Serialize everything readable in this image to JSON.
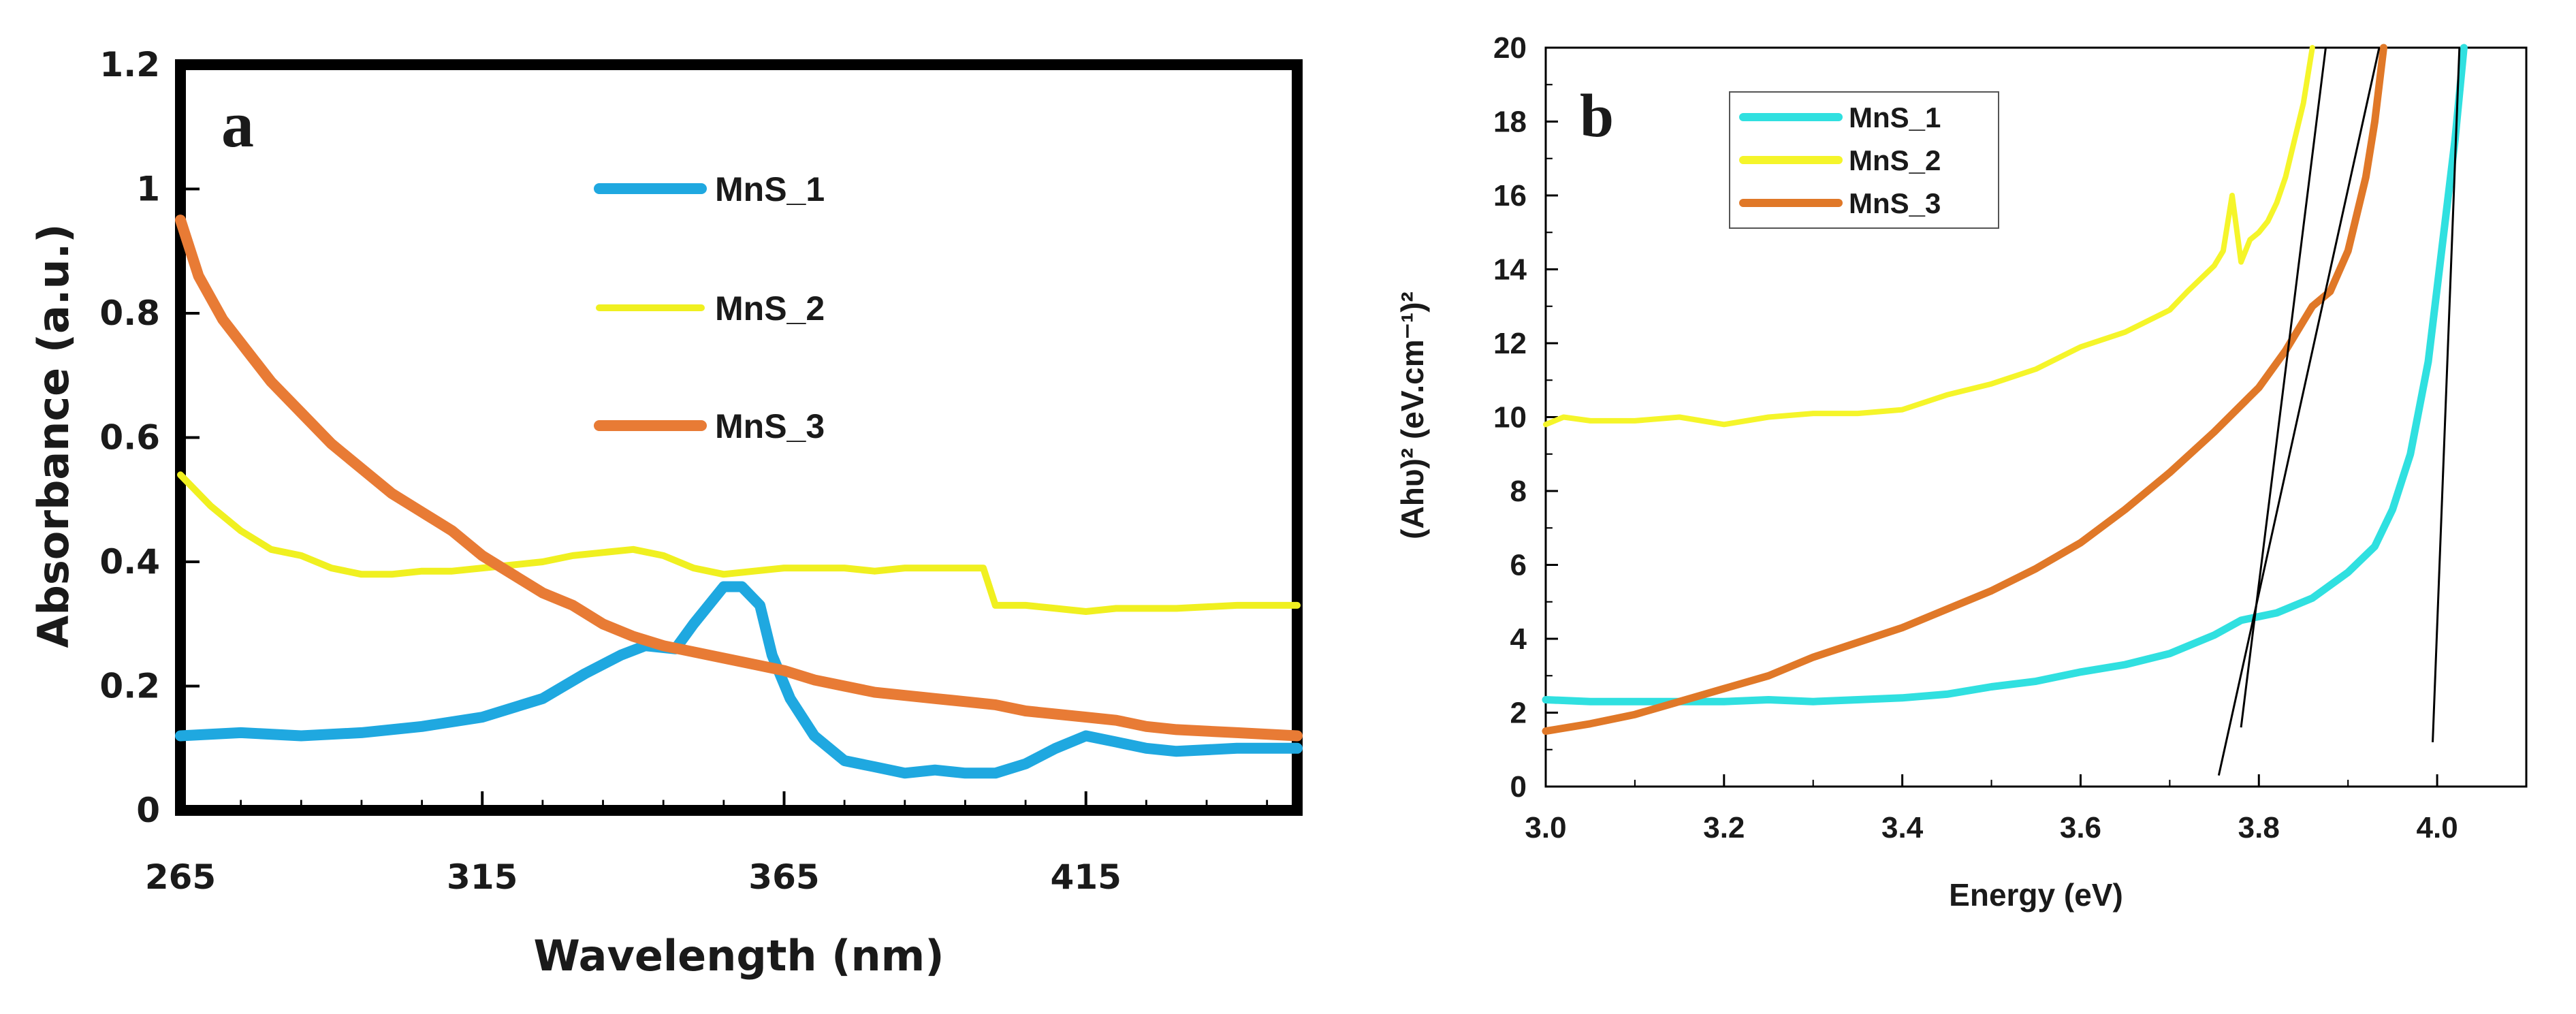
{
  "chart_data": [
    {
      "type": "line",
      "panel_label": "a",
      "title": "",
      "xlabel": "Wavelength (nm)",
      "ylabel": "Absorbance (a.u.)",
      "xlim": [
        265,
        450
      ],
      "ylim": [
        0,
        1.2
      ],
      "x_ticks": [
        265,
        315,
        365,
        415
      ],
      "x_tick_labels": [
        "265",
        "315",
        "365",
        "415"
      ],
      "y_ticks": [
        0,
        0.2,
        0.4,
        0.6,
        0.8,
        1,
        1.2
      ],
      "y_tick_labels": [
        "0",
        "0.2",
        "0.4",
        "0.6",
        "0.8",
        "1",
        "1.2"
      ],
      "legend_position": "top-center",
      "series": [
        {
          "name": "MnS_1",
          "color": "#1fa8e0",
          "x": [
            265,
            275,
            285,
            295,
            305,
            315,
            325,
            332,
            338,
            342,
            347,
            350,
            355,
            358,
            361,
            363,
            366,
            370,
            375,
            380,
            385,
            390,
            395,
            400,
            405,
            410,
            415,
            420,
            425,
            430,
            440,
            450
          ],
          "y": [
            0.12,
            0.125,
            0.12,
            0.125,
            0.135,
            0.15,
            0.18,
            0.22,
            0.25,
            0.265,
            0.26,
            0.3,
            0.36,
            0.36,
            0.33,
            0.25,
            0.18,
            0.12,
            0.08,
            0.07,
            0.06,
            0.065,
            0.06,
            0.06,
            0.075,
            0.1,
            0.12,
            0.11,
            0.1,
            0.095,
            0.1,
            0.1
          ]
        },
        {
          "name": "MnS_2",
          "color": "#f0f020",
          "x": [
            265,
            270,
            275,
            280,
            285,
            290,
            295,
            300,
            305,
            310,
            315,
            320,
            325,
            330,
            335,
            340,
            345,
            350,
            355,
            360,
            365,
            370,
            375,
            380,
            385,
            390,
            395,
            398,
            400,
            405,
            410,
            415,
            420,
            430,
            440,
            450
          ],
          "y": [
            0.54,
            0.49,
            0.45,
            0.42,
            0.41,
            0.39,
            0.38,
            0.38,
            0.385,
            0.385,
            0.39,
            0.395,
            0.4,
            0.41,
            0.415,
            0.42,
            0.41,
            0.39,
            0.38,
            0.385,
            0.39,
            0.39,
            0.39,
            0.385,
            0.39,
            0.39,
            0.39,
            0.39,
            0.33,
            0.33,
            0.325,
            0.32,
            0.325,
            0.325,
            0.33,
            0.33
          ]
        },
        {
          "name": "MnS_3",
          "color": "#e87b35",
          "x": [
            265,
            268,
            272,
            276,
            280,
            285,
            290,
            295,
            300,
            305,
            310,
            315,
            320,
            325,
            330,
            335,
            340,
            345,
            350,
            355,
            360,
            365,
            370,
            375,
            380,
            385,
            390,
            395,
            400,
            405,
            410,
            415,
            420,
            425,
            430,
            440,
            450
          ],
          "y": [
            0.95,
            0.86,
            0.79,
            0.74,
            0.69,
            0.64,
            0.59,
            0.55,
            0.51,
            0.48,
            0.45,
            0.41,
            0.38,
            0.35,
            0.33,
            0.3,
            0.28,
            0.265,
            0.255,
            0.245,
            0.235,
            0.225,
            0.21,
            0.2,
            0.19,
            0.185,
            0.18,
            0.175,
            0.17,
            0.16,
            0.155,
            0.15,
            0.145,
            0.135,
            0.13,
            0.125,
            0.12
          ]
        }
      ]
    },
    {
      "type": "line",
      "panel_label": "b",
      "title": "",
      "xlabel": "Energy (eV)",
      "ylabel": "(Ahυ)² (eV.cm⁻¹)²",
      "xlim": [
        3.0,
        4.1
      ],
      "ylim": [
        0,
        20
      ],
      "x_ticks": [
        3.0,
        3.2,
        3.4,
        3.6,
        3.8,
        4.0
      ],
      "x_tick_labels": [
        "3.0",
        "3.2",
        "3.4",
        "3.6",
        "3.8",
        "4.0"
      ],
      "y_ticks": [
        0,
        2,
        4,
        6,
        8,
        10,
        12,
        14,
        16,
        18,
        20
      ],
      "y_tick_labels": [
        "0",
        "2",
        "4",
        "6",
        "8",
        "10",
        "12",
        "14",
        "16",
        "18",
        "20"
      ],
      "legend_position": "top-left",
      "series": [
        {
          "name": "MnS_1",
          "color": "#30e0e0",
          "x": [
            3.0,
            3.05,
            3.1,
            3.15,
            3.2,
            3.25,
            3.3,
            3.35,
            3.4,
            3.45,
            3.5,
            3.55,
            3.6,
            3.65,
            3.7,
            3.75,
            3.78,
            3.82,
            3.86,
            3.9,
            3.93,
            3.95,
            3.97,
            3.99,
            4.0,
            4.01,
            4.02,
            4.03
          ],
          "y": [
            2.35,
            2.3,
            2.3,
            2.3,
            2.3,
            2.35,
            2.3,
            2.35,
            2.4,
            2.5,
            2.7,
            2.85,
            3.1,
            3.3,
            3.6,
            4.1,
            4.5,
            4.7,
            5.1,
            5.8,
            6.5,
            7.5,
            9.0,
            11.5,
            13.5,
            15.5,
            17.5,
            20
          ]
        },
        {
          "name": "MnS_2",
          "color": "#f5f52a",
          "x": [
            3.0,
            3.02,
            3.05,
            3.1,
            3.15,
            3.2,
            3.25,
            3.3,
            3.35,
            3.4,
            3.45,
            3.5,
            3.55,
            3.6,
            3.65,
            3.7,
            3.72,
            3.75,
            3.76,
            3.77,
            3.78,
            3.79,
            3.8,
            3.81,
            3.82,
            3.83,
            3.84,
            3.85,
            3.86
          ],
          "y": [
            9.8,
            10.0,
            9.9,
            9.9,
            10.0,
            9.8,
            10.0,
            10.1,
            10.1,
            10.2,
            10.6,
            10.9,
            11.3,
            11.9,
            12.3,
            12.9,
            13.4,
            14.1,
            14.5,
            16.0,
            14.2,
            14.8,
            15.0,
            15.3,
            15.8,
            16.5,
            17.5,
            18.5,
            20
          ]
        },
        {
          "name": "MnS_3",
          "color": "#e07828",
          "x": [
            3.0,
            3.05,
            3.1,
            3.15,
            3.2,
            3.25,
            3.3,
            3.35,
            3.4,
            3.45,
            3.5,
            3.55,
            3.6,
            3.65,
            3.7,
            3.75,
            3.8,
            3.83,
            3.86,
            3.88,
            3.9,
            3.92,
            3.93,
            3.94
          ],
          "y": [
            1.5,
            1.7,
            1.95,
            2.3,
            2.65,
            3.0,
            3.5,
            3.9,
            4.3,
            4.8,
            5.3,
            5.9,
            6.6,
            7.5,
            8.5,
            9.6,
            10.8,
            11.8,
            13.0,
            13.4,
            14.5,
            16.5,
            18.0,
            20
          ]
        }
      ],
      "tangent_lines": [
        {
          "x": [
            3.755,
            3.935
          ],
          "y": [
            0.3,
            20
          ]
        },
        {
          "x": [
            3.78,
            3.875
          ],
          "y": [
            1.6,
            20
          ]
        },
        {
          "x": [
            3.995,
            4.025
          ],
          "y": [
            1.2,
            20
          ]
        }
      ]
    }
  ]
}
